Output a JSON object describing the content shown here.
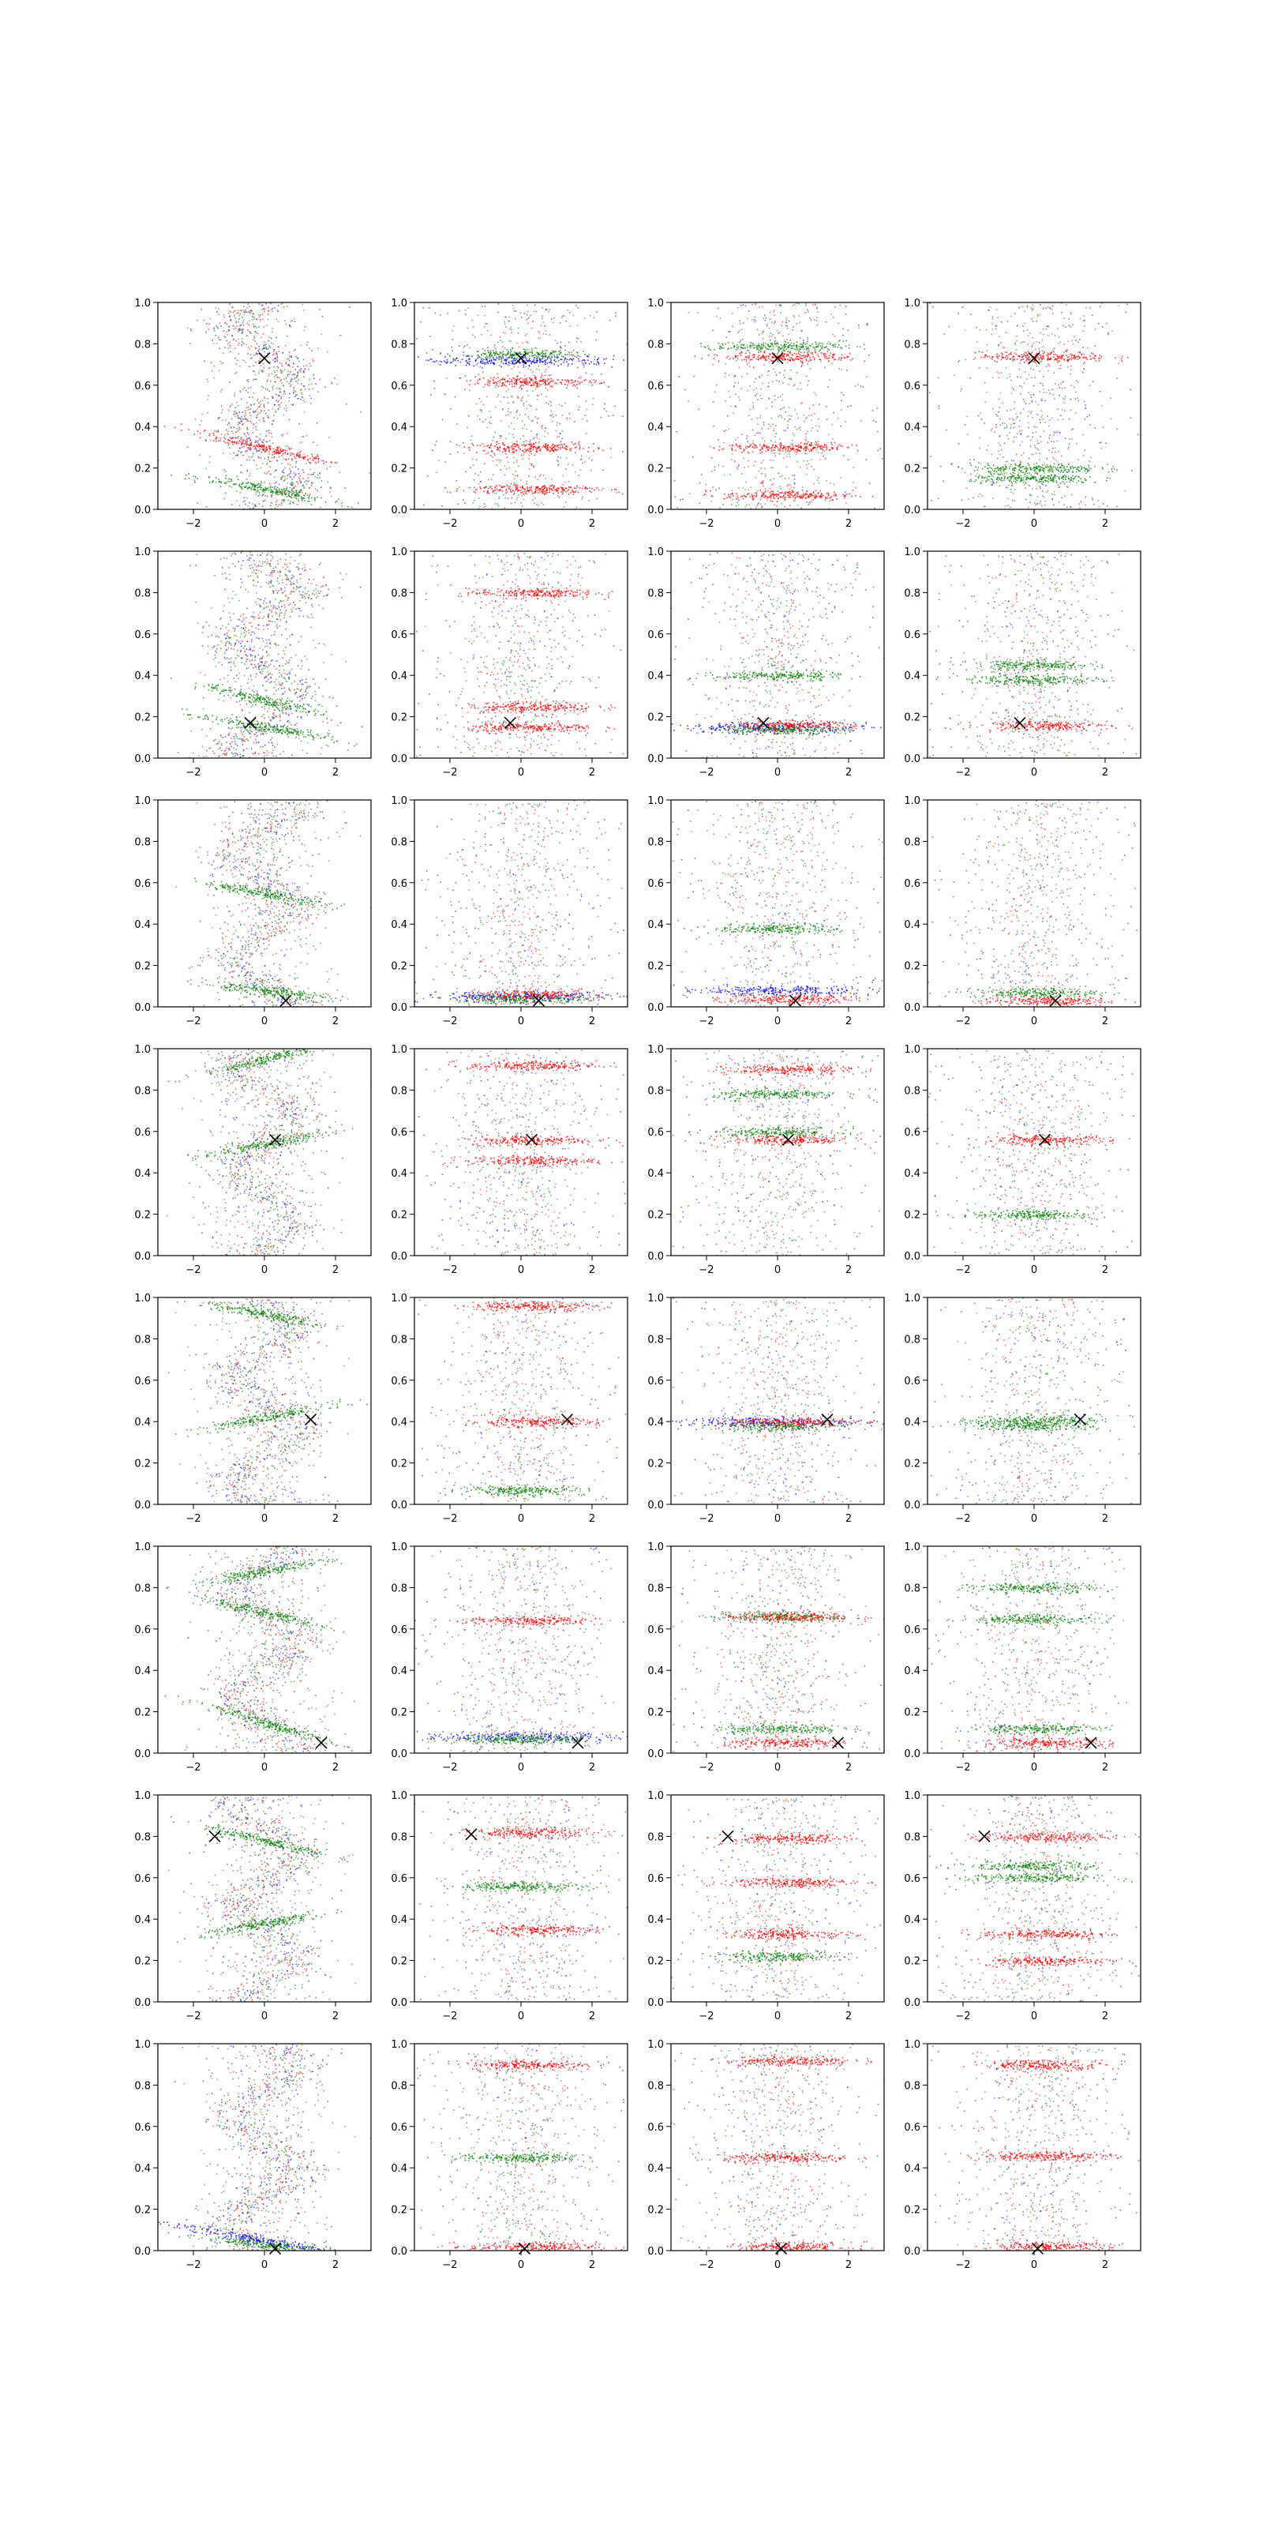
{
  "figure": {
    "type": "scatter-grid",
    "rows": 8,
    "cols": 4
  },
  "chart_data": {
    "type": "scatter",
    "xlim": [
      -3,
      3
    ],
    "ylim": [
      0,
      1
    ],
    "x_ticks": [
      -2,
      0,
      2
    ],
    "y_ticks": [
      0.0,
      0.2,
      0.4,
      0.6,
      0.8,
      1.0
    ],
    "x_tick_labels": [
      "−2",
      "0",
      "2"
    ],
    "y_tick_labels": [
      "0.0",
      "0.2",
      "0.4",
      "0.6",
      "0.8",
      "1.0"
    ],
    "series_colors": {
      "blue": "#0000ff",
      "green": "#008000",
      "red": "#ff0000"
    },
    "marker_color": "#000000",
    "marker_symbol": "×",
    "panels": [
      {
        "row": 0,
        "col": 0,
        "marker": [
          0,
          0.73
        ],
        "mode": "wave",
        "bands": [
          {
            "y": 0.3,
            "c": "red",
            "s": -0.04
          },
          {
            "y": 0.1,
            "c": "green",
            "s": -0.03
          }
        ]
      },
      {
        "row": 0,
        "col": 1,
        "marker": [
          0,
          0.73
        ],
        "mode": "bands",
        "bands": [
          {
            "y": 0.72,
            "c": "blue"
          },
          {
            "y": 0.75,
            "c": "green"
          },
          {
            "y": 0.62,
            "c": "red"
          },
          {
            "y": 0.3,
            "c": "red"
          },
          {
            "y": 0.1,
            "c": "red"
          }
        ]
      },
      {
        "row": 0,
        "col": 2,
        "marker": [
          0,
          0.73
        ],
        "mode": "bands",
        "bands": [
          {
            "y": 0.79,
            "c": "green"
          },
          {
            "y": 0.74,
            "c": "red"
          },
          {
            "y": 0.3,
            "c": "red"
          },
          {
            "y": 0.07,
            "c": "red"
          }
        ]
      },
      {
        "row": 0,
        "col": 3,
        "marker": [
          0,
          0.73
        ],
        "mode": "bands",
        "bands": [
          {
            "y": 0.74,
            "c": "red"
          },
          {
            "y": 0.2,
            "c": "green"
          },
          {
            "y": 0.15,
            "c": "green"
          }
        ]
      },
      {
        "row": 1,
        "col": 0,
        "marker": [
          -0.4,
          0.17
        ],
        "mode": "wave",
        "bands": [
          {
            "y": 0.28,
            "c": "green",
            "s": -0.04
          },
          {
            "y": 0.15,
            "c": "green",
            "s": -0.03
          }
        ]
      },
      {
        "row": 1,
        "col": 1,
        "marker": [
          -0.3,
          0.17
        ],
        "mode": "bands",
        "bands": [
          {
            "y": 0.8,
            "c": "red"
          },
          {
            "y": 0.25,
            "c": "red"
          },
          {
            "y": 0.15,
            "c": "red"
          }
        ]
      },
      {
        "row": 1,
        "col": 2,
        "marker": [
          -0.4,
          0.17
        ],
        "mode": "bands",
        "bands": [
          {
            "y": 0.4,
            "c": "green"
          },
          {
            "y": 0.15,
            "c": "blue"
          },
          {
            "y": 0.14,
            "c": "green"
          },
          {
            "y": 0.16,
            "c": "red"
          }
        ]
      },
      {
        "row": 1,
        "col": 3,
        "marker": [
          -0.4,
          0.17
        ],
        "mode": "bands",
        "bands": [
          {
            "y": 0.45,
            "c": "green"
          },
          {
            "y": 0.38,
            "c": "green"
          },
          {
            "y": 0.16,
            "c": "red"
          }
        ]
      },
      {
        "row": 2,
        "col": 0,
        "marker": [
          0.6,
          0.03
        ],
        "mode": "wave",
        "bands": [
          {
            "y": 0.55,
            "c": "green",
            "s": -0.03
          },
          {
            "y": 0.08,
            "c": "green",
            "s": -0.02
          }
        ]
      },
      {
        "row": 2,
        "col": 1,
        "marker": [
          0.5,
          0.03
        ],
        "mode": "bands",
        "bands": [
          {
            "y": 0.05,
            "c": "blue"
          },
          {
            "y": 0.04,
            "c": "green"
          },
          {
            "y": 0.06,
            "c": "red"
          }
        ]
      },
      {
        "row": 2,
        "col": 2,
        "marker": [
          0.5,
          0.03
        ],
        "mode": "bands",
        "bands": [
          {
            "y": 0.08,
            "c": "blue"
          },
          {
            "y": 0.04,
            "c": "red"
          },
          {
            "y": 0.38,
            "c": "green"
          }
        ]
      },
      {
        "row": 2,
        "col": 3,
        "marker": [
          0.6,
          0.03
        ],
        "mode": "bands",
        "bands": [
          {
            "y": 0.07,
            "c": "green"
          },
          {
            "y": 0.03,
            "c": "red"
          }
        ]
      },
      {
        "row": 3,
        "col": 0,
        "marker": [
          0.3,
          0.56
        ],
        "mode": "wave",
        "bands": [
          {
            "y": 0.95,
            "c": "green",
            "s": 0.04
          },
          {
            "y": 0.54,
            "c": "green",
            "s": 0.03
          }
        ]
      },
      {
        "row": 3,
        "col": 1,
        "marker": [
          0.3,
          0.56
        ],
        "mode": "bands",
        "bands": [
          {
            "y": 0.92,
            "c": "red"
          },
          {
            "y": 0.56,
            "c": "red"
          },
          {
            "y": 0.46,
            "c": "red"
          }
        ]
      },
      {
        "row": 3,
        "col": 2,
        "marker": [
          0.3,
          0.56
        ],
        "mode": "bands",
        "bands": [
          {
            "y": 0.78,
            "c": "green"
          },
          {
            "y": 0.6,
            "c": "green"
          },
          {
            "y": 0.56,
            "c": "red"
          },
          {
            "y": 0.9,
            "c": "red"
          }
        ]
      },
      {
        "row": 3,
        "col": 3,
        "marker": [
          0.3,
          0.56
        ],
        "mode": "bands",
        "bands": [
          {
            "y": 0.56,
            "c": "red"
          },
          {
            "y": 0.2,
            "c": "green"
          }
        ]
      },
      {
        "row": 4,
        "col": 0,
        "marker": [
          1.3,
          0.41
        ],
        "mode": "wave",
        "bands": [
          {
            "y": 0.92,
            "c": "green",
            "s": -0.03
          },
          {
            "y": 0.42,
            "c": "green",
            "s": 0.03
          }
        ]
      },
      {
        "row": 4,
        "col": 1,
        "marker": [
          1.3,
          0.41
        ],
        "mode": "bands",
        "bands": [
          {
            "y": 0.96,
            "c": "red"
          },
          {
            "y": 0.4,
            "c": "red"
          },
          {
            "y": 0.07,
            "c": "green"
          }
        ]
      },
      {
        "row": 4,
        "col": 2,
        "marker": [
          1.4,
          0.41
        ],
        "mode": "bands",
        "bands": [
          {
            "y": 0.4,
            "c": "blue"
          },
          {
            "y": 0.38,
            "c": "green"
          },
          {
            "y": 0.4,
            "c": "red"
          }
        ]
      },
      {
        "row": 4,
        "col": 3,
        "marker": [
          1.3,
          0.41
        ],
        "mode": "bands",
        "bands": [
          {
            "y": 0.41,
            "c": "green"
          },
          {
            "y": 0.38,
            "c": "green"
          }
        ]
      },
      {
        "row": 5,
        "col": 0,
        "marker": [
          1.6,
          0.05
        ],
        "mode": "wave",
        "bands": [
          {
            "y": 0.88,
            "c": "green",
            "s": 0.03
          },
          {
            "y": 0.68,
            "c": "green",
            "s": -0.04
          },
          {
            "y": 0.15,
            "c": "green",
            "s": -0.05
          }
        ]
      },
      {
        "row": 5,
        "col": 1,
        "marker": [
          1.6,
          0.05
        ],
        "mode": "bands",
        "bands": [
          {
            "y": 0.08,
            "c": "blue"
          },
          {
            "y": 0.07,
            "c": "green"
          },
          {
            "y": 0.64,
            "c": "red"
          }
        ]
      },
      {
        "row": 5,
        "col": 2,
        "marker": [
          1.7,
          0.05
        ],
        "mode": "bands",
        "bands": [
          {
            "y": 0.66,
            "c": "green"
          },
          {
            "y": 0.66,
            "c": "red"
          },
          {
            "y": 0.12,
            "c": "green"
          },
          {
            "y": 0.05,
            "c": "red"
          }
        ]
      },
      {
        "row": 5,
        "col": 3,
        "marker": [
          1.6,
          0.05
        ],
        "mode": "bands",
        "bands": [
          {
            "y": 0.8,
            "c": "green"
          },
          {
            "y": 0.65,
            "c": "green"
          },
          {
            "y": 0.12,
            "c": "green"
          },
          {
            "y": 0.05,
            "c": "red"
          }
        ]
      },
      {
        "row": 6,
        "col": 0,
        "marker": [
          -1.4,
          0.8
        ],
        "mode": "wave",
        "bands": [
          {
            "y": 0.78,
            "c": "green",
            "s": -0.04
          },
          {
            "y": 0.38,
            "c": "green",
            "s": 0.03
          }
        ]
      },
      {
        "row": 6,
        "col": 1,
        "marker": [
          -1.4,
          0.81
        ],
        "mode": "bands",
        "bands": [
          {
            "y": 0.82,
            "c": "red"
          },
          {
            "y": 0.56,
            "c": "green"
          },
          {
            "y": 0.35,
            "c": "red"
          }
        ]
      },
      {
        "row": 6,
        "col": 2,
        "marker": [
          -1.4,
          0.8
        ],
        "mode": "bands",
        "bands": [
          {
            "y": 0.79,
            "c": "red"
          },
          {
            "y": 0.33,
            "c": "red"
          },
          {
            "y": 0.22,
            "c": "green"
          },
          {
            "y": 0.58,
            "c": "red"
          }
        ]
      },
      {
        "row": 6,
        "col": 3,
        "marker": [
          -1.4,
          0.8
        ],
        "mode": "bands",
        "bands": [
          {
            "y": 0.8,
            "c": "red"
          },
          {
            "y": 0.66,
            "c": "green"
          },
          {
            "y": 0.6,
            "c": "green"
          },
          {
            "y": 0.33,
            "c": "red"
          },
          {
            "y": 0.2,
            "c": "red"
          }
        ]
      },
      {
        "row": 7,
        "col": 0,
        "marker": [
          0.3,
          0.01
        ],
        "mode": "wave",
        "bands": [
          {
            "y": 0.05,
            "c": "blue",
            "s": -0.03
          },
          {
            "y": 0.03,
            "c": "green",
            "s": -0.02
          }
        ]
      },
      {
        "row": 7,
        "col": 1,
        "marker": [
          0.1,
          0.01
        ],
        "mode": "bands",
        "bands": [
          {
            "y": 0.45,
            "c": "green"
          },
          {
            "y": 0.02,
            "c": "red"
          },
          {
            "y": 0.9,
            "c": "red"
          }
        ]
      },
      {
        "row": 7,
        "col": 2,
        "marker": [
          0.1,
          0.01
        ],
        "mode": "bands",
        "bands": [
          {
            "y": 0.92,
            "c": "red"
          },
          {
            "y": 0.45,
            "c": "red"
          },
          {
            "y": 0.02,
            "c": "red"
          }
        ]
      },
      {
        "row": 7,
        "col": 3,
        "marker": [
          0.1,
          0.01
        ],
        "mode": "bands",
        "bands": [
          {
            "y": 0.9,
            "c": "red"
          },
          {
            "y": 0.46,
            "c": "red"
          },
          {
            "y": 0.02,
            "c": "red"
          }
        ]
      }
    ]
  }
}
